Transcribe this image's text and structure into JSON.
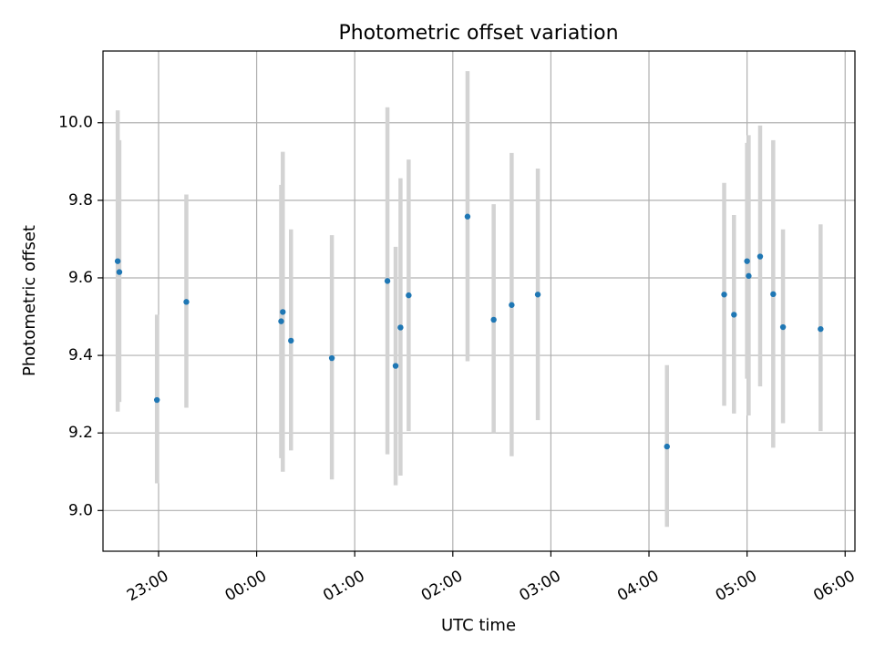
{
  "chart_data": {
    "type": "scatter",
    "title": "Photometric offset variation",
    "xlabel": "UTC time",
    "ylabel": "Photometric offset",
    "x_axis_kind": "time",
    "xlim": [
      "22:26",
      "06:06"
    ],
    "ylim": [
      8.895,
      10.185
    ],
    "grid": true,
    "x_ticks": [
      "23:00",
      "00:00",
      "01:00",
      "02:00",
      "03:00",
      "04:00",
      "05:00",
      "06:00"
    ],
    "y_ticks": [
      "9.0",
      "9.2",
      "9.4",
      "9.6",
      "9.8",
      "10.0"
    ],
    "colors": {
      "points": "#1f77b4",
      "error_bars": "#d3d3d3",
      "grid": "#b0b0b0"
    },
    "points": [
      {
        "t": "22:35",
        "y": 9.643,
        "lo": 9.255,
        "hi": 10.032
      },
      {
        "t": "22:36",
        "y": 9.615,
        "lo": 9.28,
        "hi": 9.955
      },
      {
        "t": "22:59",
        "y": 9.285,
        "lo": 9.07,
        "hi": 9.505
      },
      {
        "t": "23:17",
        "y": 9.538,
        "lo": 9.265,
        "hi": 9.815
      },
      {
        "t": "00:15",
        "y": 9.488,
        "lo": 9.135,
        "hi": 9.84
      },
      {
        "t": "00:16",
        "y": 9.512,
        "lo": 9.1,
        "hi": 9.925
      },
      {
        "t": "00:21",
        "y": 9.438,
        "lo": 9.155,
        "hi": 9.725
      },
      {
        "t": "00:46",
        "y": 9.393,
        "lo": 9.08,
        "hi": 9.71
      },
      {
        "t": "01:20",
        "y": 9.592,
        "lo": 9.145,
        "hi": 10.04
      },
      {
        "t": "01:25",
        "y": 9.373,
        "lo": 9.065,
        "hi": 9.68
      },
      {
        "t": "01:28",
        "y": 9.472,
        "lo": 9.09,
        "hi": 9.857
      },
      {
        "t": "01:33",
        "y": 9.555,
        "lo": 9.205,
        "hi": 9.905
      },
      {
        "t": "02:09",
        "y": 9.758,
        "lo": 9.385,
        "hi": 10.133
      },
      {
        "t": "02:25",
        "y": 9.492,
        "lo": 9.2,
        "hi": 9.79
      },
      {
        "t": "02:36",
        "y": 9.53,
        "lo": 9.14,
        "hi": 9.922
      },
      {
        "t": "02:52",
        "y": 9.557,
        "lo": 9.233,
        "hi": 9.882
      },
      {
        "t": "04:11",
        "y": 9.165,
        "lo": 8.958,
        "hi": 9.375
      },
      {
        "t": "04:46",
        "y": 9.557,
        "lo": 9.27,
        "hi": 9.845
      },
      {
        "t": "04:52",
        "y": 9.505,
        "lo": 9.25,
        "hi": 9.762
      },
      {
        "t": "05:00",
        "y": 9.643,
        "lo": 9.34,
        "hi": 9.948
      },
      {
        "t": "05:01",
        "y": 9.605,
        "lo": 9.245,
        "hi": 9.968
      },
      {
        "t": "05:08",
        "y": 9.655,
        "lo": 9.32,
        "hi": 9.993
      },
      {
        "t": "05:16",
        "y": 9.558,
        "lo": 9.162,
        "hi": 9.955
      },
      {
        "t": "05:22",
        "y": 9.473,
        "lo": 9.225,
        "hi": 9.725
      },
      {
        "t": "05:45",
        "y": 9.468,
        "lo": 9.205,
        "hi": 9.738
      }
    ]
  }
}
